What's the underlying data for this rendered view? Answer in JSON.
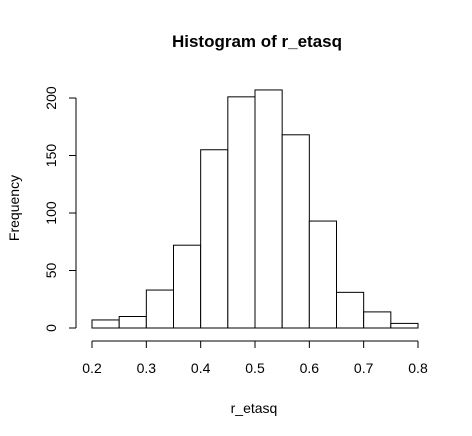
{
  "chart_data": {
    "type": "bar",
    "subtype": "histogram",
    "title": "Histogram of r_etasq",
    "xlabel": "r_etasq",
    "ylabel": "Frequency",
    "bin_edges": [
      0.2,
      0.25,
      0.3,
      0.35,
      0.4,
      0.45,
      0.5,
      0.55,
      0.6,
      0.65,
      0.7,
      0.75,
      0.8
    ],
    "values": [
      7,
      10,
      33,
      72,
      155,
      201,
      207,
      168,
      93,
      31,
      14,
      4
    ],
    "xlim": [
      0.2,
      0.8
    ],
    "ylim": [
      0,
      207
    ],
    "x_ticks": [
      "0.2",
      "0.3",
      "0.4",
      "0.5",
      "0.6",
      "0.7",
      "0.8"
    ],
    "y_ticks": [
      "0",
      "50",
      "100",
      "150",
      "200"
    ],
    "bar_fill": "#ffffff",
    "bar_stroke": "#000000",
    "grid": false,
    "legend": "none"
  }
}
